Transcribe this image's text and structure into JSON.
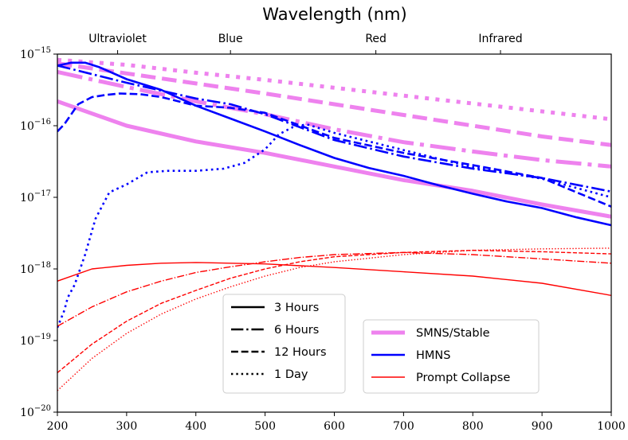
{
  "chart_data": {
    "type": "line",
    "title": "Wavelength (nm)",
    "xlabel": "",
    "ylabel": "",
    "xlim": [
      200,
      1000
    ],
    "ylim_log10": [
      -20,
      -15
    ],
    "y_scale": "log",
    "x_ticks": [
      "200",
      "300",
      "400",
      "500",
      "600",
      "700",
      "800",
      "900",
      "1000"
    ],
    "y_ticks": [
      {
        "base": "10",
        "exp": "−15",
        "log10": -15
      },
      {
        "base": "10",
        "exp": "−16",
        "log10": -16
      },
      {
        "base": "10",
        "exp": "−17",
        "log10": -17
      },
      {
        "base": "10",
        "exp": "−18",
        "log10": -18
      },
      {
        "base": "10",
        "exp": "−19",
        "log10": -19
      },
      {
        "base": "10",
        "exp": "−20",
        "log10": -20
      }
    ],
    "top_axis": [
      {
        "label": "Ultraviolet",
        "x": 287
      },
      {
        "label": "Blue",
        "x": 450
      },
      {
        "label": "Red",
        "x": 660
      },
      {
        "label": "Infrared",
        "x": 840
      }
    ],
    "colors": {
      "smns": "#ee82ee",
      "hmns": "#0000ff",
      "prompt": "#ff0000"
    },
    "series": [
      {
        "name": "SMNS/Stable",
        "time": "3 Hours",
        "style": "solid",
        "x": [
          200,
          300,
          400,
          500,
          600,
          700,
          800,
          900,
          1000
        ],
        "log10_y": [
          -15.66,
          -16.0,
          -16.22,
          -16.38,
          -16.57,
          -16.76,
          -16.91,
          -17.1,
          -17.27
        ]
      },
      {
        "name": "SMNS/Stable",
        "time": "6 Hours",
        "style": "dashdot",
        "x": [
          200,
          300,
          400,
          500,
          600,
          700,
          800,
          900,
          1000
        ],
        "log10_y": [
          -15.25,
          -15.46,
          -15.66,
          -15.84,
          -16.05,
          -16.23,
          -16.36,
          -16.48,
          -16.57
        ]
      },
      {
        "name": "SMNS/Stable",
        "time": "12 Hours",
        "style": "dashed",
        "x": [
          200,
          300,
          400,
          500,
          600,
          700,
          800,
          900,
          1000
        ],
        "log10_y": [
          -15.13,
          -15.27,
          -15.41,
          -15.55,
          -15.7,
          -15.85,
          -16.0,
          -16.15,
          -16.27
        ]
      },
      {
        "name": "SMNS/Stable",
        "time": "1 Day",
        "style": "dotted",
        "x": [
          200,
          300,
          400,
          500,
          600,
          700,
          800,
          900,
          1000
        ],
        "log10_y": [
          -15.08,
          -15.15,
          -15.26,
          -15.36,
          -15.47,
          -15.58,
          -15.69,
          -15.8,
          -15.91
        ]
      },
      {
        "name": "HMNS",
        "time": "3 Hours",
        "style": "solid",
        "x": [
          200,
          220,
          240,
          260,
          300,
          350,
          400,
          450,
          500,
          550,
          600,
          650,
          700,
          750,
          800,
          850,
          900,
          950,
          1000
        ],
        "log10_y": [
          -15.16,
          -15.12,
          -15.12,
          -15.18,
          -15.35,
          -15.5,
          -15.72,
          -15.9,
          -16.08,
          -16.27,
          -16.45,
          -16.59,
          -16.7,
          -16.83,
          -16.95,
          -17.06,
          -17.15,
          -17.28,
          -17.39
        ]
      },
      {
        "name": "HMNS",
        "time": "6 Hours",
        "style": "dashdot",
        "x": [
          200,
          300,
          400,
          450,
          500,
          600,
          700,
          800,
          900,
          1000
        ],
        "log10_y": [
          -15.16,
          -15.4,
          -15.62,
          -15.7,
          -15.84,
          -16.2,
          -16.43,
          -16.6,
          -16.73,
          -16.92
        ]
      },
      {
        "name": "HMNS",
        "time": "12 Hours",
        "style": "dashed",
        "x": [
          200,
          210,
          230,
          250,
          270,
          290,
          320,
          350,
          400,
          450,
          500,
          600,
          700,
          800,
          900,
          1000
        ],
        "log10_y": [
          -16.08,
          -15.98,
          -15.7,
          -15.6,
          -15.57,
          -15.55,
          -15.56,
          -15.6,
          -15.72,
          -15.75,
          -15.82,
          -16.17,
          -16.38,
          -16.55,
          -16.73,
          -17.13
        ]
      },
      {
        "name": "HMNS",
        "time": "1 Day",
        "style": "dotted",
        "x": [
          200,
          210,
          215,
          225,
          240,
          255,
          275,
          300,
          330,
          360,
          400,
          440,
          470,
          500,
          520,
          540,
          560,
          600,
          700,
          800,
          900,
          1000
        ],
        "log10_y": [
          -18.82,
          -18.58,
          -18.4,
          -18.22,
          -17.8,
          -17.3,
          -16.93,
          -16.82,
          -16.65,
          -16.63,
          -16.63,
          -16.6,
          -16.52,
          -16.33,
          -16.12,
          -16.02,
          -15.98,
          -16.1,
          -16.34,
          -16.58,
          -16.74,
          -17.0
        ]
      },
      {
        "name": "Prompt Collapse",
        "time": "3 Hours",
        "style": "solid",
        "x": [
          200,
          250,
          300,
          350,
          400,
          450,
          500,
          600,
          700,
          800,
          900,
          1000
        ],
        "log10_y": [
          -18.17,
          -18.0,
          -17.95,
          -17.92,
          -17.91,
          -17.92,
          -17.93,
          -17.98,
          -18.04,
          -18.1,
          -18.2,
          -18.37
        ]
      },
      {
        "name": "Prompt Collapse",
        "time": "6 Hours",
        "style": "dashdot",
        "x": [
          200,
          250,
          300,
          350,
          400,
          450,
          500,
          550,
          600,
          700,
          800,
          900,
          1000
        ],
        "log10_y": [
          -18.8,
          -18.53,
          -18.32,
          -18.17,
          -18.05,
          -17.97,
          -17.9,
          -17.84,
          -17.8,
          -17.77,
          -17.8,
          -17.86,
          -17.92
        ]
      },
      {
        "name": "Prompt Collapse",
        "time": "12 Hours",
        "style": "dashed",
        "x": [
          200,
          250,
          300,
          350,
          400,
          450,
          500,
          550,
          600,
          700,
          800,
          900,
          1000
        ],
        "log10_y": [
          -19.45,
          -19.05,
          -18.73,
          -18.48,
          -18.3,
          -18.13,
          -18.0,
          -17.9,
          -17.83,
          -17.77,
          -17.74,
          -17.76,
          -17.79
        ]
      },
      {
        "name": "Prompt Collapse",
        "time": "1 Day",
        "style": "dotted",
        "x": [
          200,
          250,
          300,
          350,
          400,
          450,
          500,
          550,
          600,
          700,
          800,
          900,
          1000
        ],
        "log10_y": [
          -19.7,
          -19.25,
          -18.9,
          -18.63,
          -18.42,
          -18.25,
          -18.1,
          -17.98,
          -17.9,
          -17.8,
          -17.74,
          -17.72,
          -17.71
        ]
      }
    ],
    "legend_style": {
      "placement": "lower-center",
      "entries": [
        {
          "label": "3 Hours",
          "style": "solid"
        },
        {
          "label": "6 Hours",
          "style": "dashdot"
        },
        {
          "label": "12 Hours",
          "style": "dashed"
        },
        {
          "label": "1 Day",
          "style": "dotted"
        }
      ]
    },
    "legend_model": {
      "placement": "lower-right",
      "entries": [
        {
          "label": "SMNS/Stable",
          "color": "#ee82ee"
        },
        {
          "label": "HMNS",
          "color": "#0000ff"
        },
        {
          "label": "Prompt Collapse",
          "color": "#ff0000"
        }
      ]
    }
  }
}
